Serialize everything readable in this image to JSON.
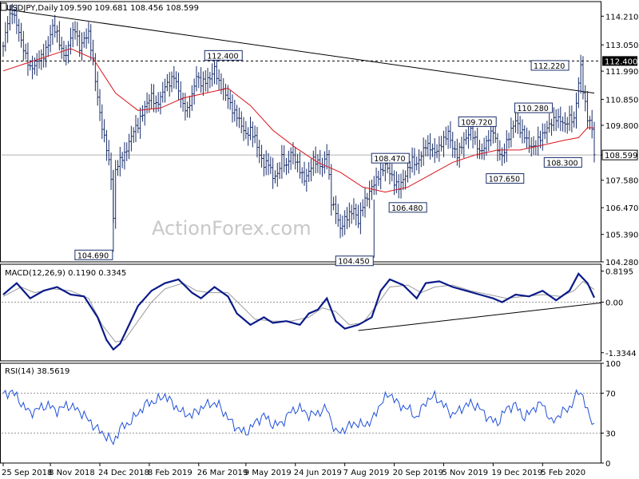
{
  "header": {
    "symbol": "USDJPY,Daily",
    "ohlc": "109.590 109.681 108.456 108.599"
  },
  "watermark": "ActionForex.com",
  "colors": {
    "price": "#1a2e6a",
    "ma": "#d9141b",
    "macd": "#0a1a8a",
    "signal": "#9a9a9a",
    "rsi": "#2050d8",
    "last_box": "#000000"
  },
  "chart_data": [
    {
      "type": "ohlc",
      "name": "price",
      "ylim": [
        104.28,
        114.8
      ],
      "y_ticks": [
        "114.210",
        "113.050",
        "111.990",
        "110.850",
        "109.800",
        "108.599",
        "107.580",
        "106.470",
        "105.390",
        "104.280"
      ],
      "x_ticks": [
        "25 Sep 2018",
        "8 Nov 2018",
        "24 Dec 2018",
        "8 Feb 2019",
        "26 Mar 2019",
        "9 May 2019",
        "24 Jun 2019",
        "7 Aug 2019",
        "20 Sep 2019",
        "5 Nov 2019",
        "19 Dec 2019",
        "5 Feb 2020"
      ],
      "last_price": "108.599",
      "resistance_label": "112.400",
      "close_path": [
        [
          0,
          113.0
        ],
        [
          2,
          114.0
        ],
        [
          4,
          114.4
        ],
        [
          6,
          113.9
        ],
        [
          8,
          113.2
        ],
        [
          10,
          112.6
        ],
        [
          12,
          112.1
        ],
        [
          14,
          112.2
        ],
        [
          16,
          112.5
        ],
        [
          18,
          112.6
        ],
        [
          20,
          113.1
        ],
        [
          22,
          113.8
        ],
        [
          24,
          113.5
        ],
        [
          26,
          112.8
        ],
        [
          28,
          112.6
        ],
        [
          30,
          113.4
        ],
        [
          32,
          113.7
        ],
        [
          34,
          112.9
        ],
        [
          36,
          113.3
        ],
        [
          38,
          113.5
        ],
        [
          40,
          112.4
        ],
        [
          42,
          110.9
        ],
        [
          44,
          109.7
        ],
        [
          46,
          108.9
        ],
        [
          48,
          107.7
        ],
        [
          49,
          106.0
        ],
        [
          50,
          108.0
        ],
        [
          52,
          108.4
        ],
        [
          54,
          108.6
        ],
        [
          56,
          109.1
        ],
        [
          58,
          109.6
        ],
        [
          60,
          109.8
        ],
        [
          62,
          110.3
        ],
        [
          64,
          110.7
        ],
        [
          66,
          111.0
        ],
        [
          68,
          110.6
        ],
        [
          70,
          110.9
        ],
        [
          72,
          111.4
        ],
        [
          74,
          111.5
        ],
        [
          76,
          111.8
        ],
        [
          78,
          111.2
        ],
        [
          80,
          110.6
        ],
        [
          82,
          110.4
        ],
        [
          84,
          111.0
        ],
        [
          86,
          111.8
        ],
        [
          88,
          111.5
        ],
        [
          90,
          111.6
        ],
        [
          92,
          111.7
        ],
        [
          94,
          112.1
        ],
        [
          96,
          111.5
        ],
        [
          98,
          111.2
        ],
        [
          100,
          110.9
        ],
        [
          102,
          110.4
        ],
        [
          104,
          110.2
        ],
        [
          106,
          109.8
        ],
        [
          108,
          109.4
        ],
        [
          110,
          109.6
        ],
        [
          112,
          109.3
        ],
        [
          114,
          108.6
        ],
        [
          116,
          108.2
        ],
        [
          118,
          108.3
        ],
        [
          120,
          107.7
        ],
        [
          122,
          107.8
        ],
        [
          124,
          108.5
        ],
        [
          126,
          108.1
        ],
        [
          128,
          108.7
        ],
        [
          130,
          108.4
        ],
        [
          132,
          108.0
        ],
        [
          134,
          107.6
        ],
        [
          136,
          107.9
        ],
        [
          138,
          108.4
        ],
        [
          140,
          108.3
        ],
        [
          142,
          108.1
        ],
        [
          144,
          108.7
        ],
        [
          146,
          106.7
        ],
        [
          148,
          106.3
        ],
        [
          150,
          105.6
        ],
        [
          152,
          106.0
        ],
        [
          154,
          106.2
        ],
        [
          156,
          106.4
        ],
        [
          158,
          105.9
        ],
        [
          160,
          106.6
        ],
        [
          162,
          106.9
        ],
        [
          164,
          107.3
        ],
        [
          166,
          107.6
        ],
        [
          168,
          107.9
        ],
        [
          170,
          108.2
        ],
        [
          172,
          107.9
        ],
        [
          174,
          107.5
        ],
        [
          176,
          107.3
        ],
        [
          178,
          107.6
        ],
        [
          180,
          108.0
        ],
        [
          182,
          108.4
        ],
        [
          184,
          108.2
        ],
        [
          186,
          108.6
        ],
        [
          188,
          109.0
        ],
        [
          190,
          108.9
        ],
        [
          192,
          108.7
        ],
        [
          194,
          108.9
        ],
        [
          196,
          109.2
        ],
        [
          198,
          109.5
        ],
        [
          200,
          108.9
        ],
        [
          202,
          108.6
        ],
        [
          204,
          109.0
        ],
        [
          206,
          109.3
        ],
        [
          208,
          109.6
        ],
        [
          210,
          109.2
        ],
        [
          212,
          108.7
        ],
        [
          214,
          108.9
        ],
        [
          216,
          109.3
        ],
        [
          218,
          109.6
        ],
        [
          220,
          108.8
        ],
        [
          222,
          108.5
        ],
        [
          224,
          109.1
        ],
        [
          226,
          109.6
        ],
        [
          228,
          110.0
        ],
        [
          230,
          109.6
        ],
        [
          232,
          109.4
        ],
        [
          234,
          109.0
        ],
        [
          236,
          108.9
        ],
        [
          238,
          109.2
        ],
        [
          240,
          109.4
        ],
        [
          242,
          109.7
        ],
        [
          244,
          109.9
        ],
        [
          246,
          110.1
        ],
        [
          248,
          110.0
        ],
        [
          250,
          109.8
        ],
        [
          252,
          110.1
        ],
        [
          254,
          110.0
        ],
        [
          256,
          111.5
        ],
        [
          257,
          112.2
        ],
        [
          258,
          111.2
        ],
        [
          260,
          110.1
        ],
        [
          262,
          109.7
        ],
        [
          263,
          108.6
        ]
      ],
      "ma_path": [
        [
          0,
          112.0
        ],
        [
          10,
          112.3
        ],
        [
          20,
          112.6
        ],
        [
          30,
          112.9
        ],
        [
          40,
          112.5
        ],
        [
          50,
          111.1
        ],
        [
          60,
          110.4
        ],
        [
          70,
          110.5
        ],
        [
          80,
          110.9
        ],
        [
          90,
          111.1
        ],
        [
          100,
          111.3
        ],
        [
          110,
          110.6
        ],
        [
          120,
          109.6
        ],
        [
          130,
          108.9
        ],
        [
          140,
          108.3
        ],
        [
          150,
          107.9
        ],
        [
          160,
          107.3
        ],
        [
          170,
          107.1
        ],
        [
          180,
          107.3
        ],
        [
          190,
          107.8
        ],
        [
          200,
          108.3
        ],
        [
          210,
          108.6
        ],
        [
          220,
          108.8
        ],
        [
          230,
          108.8
        ],
        [
          240,
          109.0
        ],
        [
          250,
          109.2
        ],
        [
          256,
          109.3
        ],
        [
          260,
          109.7
        ],
        [
          263,
          109.7
        ]
      ],
      "trendline": [
        [
          0,
          114.5
        ],
        [
          263,
          111.1
        ]
      ],
      "annotations": [
        {
          "text": "112.400",
          "x": 98,
          "y": 112.4,
          "anchor": "above"
        },
        {
          "text": "104.690",
          "x": 49,
          "y": 104.69,
          "anchor": "left"
        },
        {
          "text": "104.450",
          "x": 165,
          "y": 104.45,
          "anchor": "left"
        },
        {
          "text": "108.470",
          "x": 181,
          "y": 108.47,
          "anchor": "left"
        },
        {
          "text": "106.480",
          "x": 171,
          "y": 106.48,
          "anchor": "right"
        },
        {
          "text": "109.720",
          "x": 211,
          "y": 109.72,
          "anchor": "above"
        },
        {
          "text": "110.280",
          "x": 236,
          "y": 110.28,
          "anchor": "above"
        },
        {
          "text": "112.220",
          "x": 252,
          "y": 112.22,
          "anchor": "left"
        },
        {
          "text": "108.300",
          "x": 240,
          "y": 108.3,
          "anchor": "right"
        },
        {
          "text": "107.650",
          "x": 232,
          "y": 107.65,
          "anchor": "left"
        }
      ]
    },
    {
      "type": "line",
      "name": "MACD",
      "label": "MACD(12,26,9) 0.1190 0.3345",
      "ylim": [
        -1.3344,
        0.8195
      ],
      "y_ticks": [
        "0.8195",
        "0.00",
        "-1.3344"
      ],
      "macd_path": [
        [
          0,
          0.2
        ],
        [
          6,
          0.5
        ],
        [
          12,
          0.1
        ],
        [
          18,
          0.3
        ],
        [
          24,
          0.4
        ],
        [
          30,
          0.2
        ],
        [
          36,
          0.15
        ],
        [
          42,
          -0.4
        ],
        [
          46,
          -1.0
        ],
        [
          49,
          -1.25
        ],
        [
          52,
          -1.1
        ],
        [
          56,
          -0.6
        ],
        [
          60,
          -0.1
        ],
        [
          66,
          0.3
        ],
        [
          72,
          0.5
        ],
        [
          78,
          0.6
        ],
        [
          84,
          0.25
        ],
        [
          88,
          0.1
        ],
        [
          94,
          0.4
        ],
        [
          100,
          0.15
        ],
        [
          104,
          -0.3
        ],
        [
          110,
          -0.6
        ],
        [
          116,
          -0.4
        ],
        [
          120,
          -0.55
        ],
        [
          126,
          -0.5
        ],
        [
          132,
          -0.6
        ],
        [
          136,
          -0.3
        ],
        [
          140,
          -0.2
        ],
        [
          144,
          0.1
        ],
        [
          148,
          -0.5
        ],
        [
          152,
          -0.7
        ],
        [
          158,
          -0.6
        ],
        [
          164,
          -0.4
        ],
        [
          168,
          0.3
        ],
        [
          172,
          0.6
        ],
        [
          178,
          0.45
        ],
        [
          184,
          0.1
        ],
        [
          188,
          0.5
        ],
        [
          194,
          0.55
        ],
        [
          200,
          0.4
        ],
        [
          206,
          0.3
        ],
        [
          212,
          0.2
        ],
        [
          218,
          0.1
        ],
        [
          222,
          0.0
        ],
        [
          228,
          0.2
        ],
        [
          234,
          0.15
        ],
        [
          240,
          0.3
        ],
        [
          246,
          0.05
        ],
        [
          252,
          0.3
        ],
        [
          256,
          0.75
        ],
        [
          260,
          0.5
        ],
        [
          263,
          0.12
        ]
      ],
      "signal_path": [
        [
          0,
          0.15
        ],
        [
          8,
          0.4
        ],
        [
          14,
          0.25
        ],
        [
          22,
          0.35
        ],
        [
          30,
          0.3
        ],
        [
          38,
          0.1
        ],
        [
          44,
          -0.6
        ],
        [
          50,
          -1.05
        ],
        [
          54,
          -1.0
        ],
        [
          60,
          -0.5
        ],
        [
          66,
          0.0
        ],
        [
          72,
          0.35
        ],
        [
          80,
          0.5
        ],
        [
          86,
          0.3
        ],
        [
          92,
          0.25
        ],
        [
          100,
          0.25
        ],
        [
          106,
          -0.1
        ],
        [
          112,
          -0.45
        ],
        [
          120,
          -0.5
        ],
        [
          128,
          -0.5
        ],
        [
          136,
          -0.4
        ],
        [
          142,
          -0.15
        ],
        [
          148,
          -0.25
        ],
        [
          154,
          -0.6
        ],
        [
          160,
          -0.55
        ],
        [
          166,
          -0.1
        ],
        [
          172,
          0.4
        ],
        [
          180,
          0.45
        ],
        [
          186,
          0.25
        ],
        [
          192,
          0.4
        ],
        [
          200,
          0.45
        ],
        [
          208,
          0.3
        ],
        [
          216,
          0.2
        ],
        [
          224,
          0.1
        ],
        [
          232,
          0.15
        ],
        [
          240,
          0.2
        ],
        [
          248,
          0.15
        ],
        [
          254,
          0.3
        ],
        [
          258,
          0.55
        ],
        [
          263,
          0.33
        ]
      ],
      "trendline": [
        [
          158,
          -0.75
        ],
        [
          263,
          -0.02
        ]
      ]
    },
    {
      "type": "line",
      "name": "RSI",
      "label": "RSI(14) 38.5619",
      "ylim": [
        0,
        100
      ],
      "y_ticks": [
        "100",
        "70",
        "30",
        "0"
      ],
      "levels": [
        70,
        30
      ],
      "rsi_path": [
        [
          0,
          68
        ],
        [
          4,
          72
        ],
        [
          8,
          60
        ],
        [
          12,
          50
        ],
        [
          16,
          55
        ],
        [
          20,
          58
        ],
        [
          24,
          52
        ],
        [
          28,
          58
        ],
        [
          32,
          55
        ],
        [
          36,
          48
        ],
        [
          40,
          38
        ],
        [
          44,
          30
        ],
        [
          47,
          25
        ],
        [
          49,
          20
        ],
        [
          52,
          35
        ],
        [
          56,
          40
        ],
        [
          60,
          50
        ],
        [
          64,
          60
        ],
        [
          68,
          62
        ],
        [
          72,
          68
        ],
        [
          76,
          58
        ],
        [
          80,
          50
        ],
        [
          84,
          48
        ],
        [
          88,
          55
        ],
        [
          92,
          60
        ],
        [
          96,
          58
        ],
        [
          100,
          45
        ],
        [
          104,
          35
        ],
        [
          108,
          30
        ],
        [
          112,
          40
        ],
        [
          116,
          48
        ],
        [
          120,
          38
        ],
        [
          124,
          40
        ],
        [
          128,
          52
        ],
        [
          132,
          55
        ],
        [
          136,
          48
        ],
        [
          140,
          50
        ],
        [
          144,
          55
        ],
        [
          148,
          30
        ],
        [
          152,
          34
        ],
        [
          156,
          40
        ],
        [
          160,
          38
        ],
        [
          164,
          42
        ],
        [
          168,
          60
        ],
        [
          172,
          70
        ],
        [
          176,
          58
        ],
        [
          180,
          55
        ],
        [
          184,
          45
        ],
        [
          188,
          62
        ],
        [
          192,
          67
        ],
        [
          196,
          58
        ],
        [
          200,
          48
        ],
        [
          204,
          55
        ],
        [
          208,
          60
        ],
        [
          212,
          55
        ],
        [
          216,
          45
        ],
        [
          220,
          40
        ],
        [
          224,
          55
        ],
        [
          228,
          58
        ],
        [
          232,
          45
        ],
        [
          236,
          55
        ],
        [
          240,
          60
        ],
        [
          244,
          40
        ],
        [
          248,
          50
        ],
        [
          252,
          55
        ],
        [
          256,
          72
        ],
        [
          258,
          68
        ],
        [
          260,
          50
        ],
        [
          263,
          38
        ]
      ]
    }
  ]
}
